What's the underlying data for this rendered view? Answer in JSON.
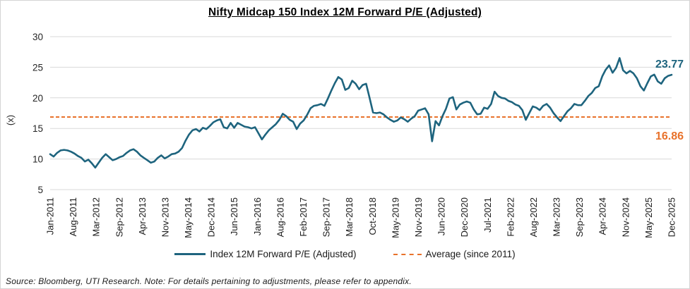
{
  "title": "Nifty Midcap 150 Index 12M Forward P/E (Adjusted)",
  "y_axis_title": "(x)",
  "legend": {
    "series_label": "Index 12M Forward P/E (Adjusted)",
    "average_label": "Average (since 2011)"
  },
  "source_note": "Source: Bloomberg, UTI Research. Note: For details pertaining to adjustments, please refer to appendix.",
  "colors": {
    "series": "#1E647E",
    "average": "#E8722B",
    "grid": "#D9D9D9",
    "text": "#262626"
  },
  "chart_data": {
    "type": "line",
    "title": "Nifty Midcap 150 Index 12M Forward P/E (Adjusted)",
    "xlabel": "",
    "ylabel": "(x)",
    "ylim": [
      5,
      30
    ],
    "yticks": [
      5,
      10,
      15,
      20,
      25,
      30
    ],
    "grid": "horizontal",
    "legend_position": "bottom",
    "x_start": "Jan-2011",
    "x_end": "Dec-2025",
    "frequency": "monthly",
    "x_tick_labels": [
      "Jan-2011",
      "Aug-2011",
      "Mar-2012",
      "Sep-2012",
      "Apr-2013",
      "Nov-2013",
      "May-2014",
      "Dec-2014",
      "Jun-2015",
      "Jan-2016",
      "Aug-2016",
      "Feb-2017",
      "Sep-2017",
      "Mar-2018",
      "Oct-2018",
      "May-2019",
      "Nov-2019",
      "Jun-2020",
      "Dec-2020",
      "Jul-2021",
      "Feb-2022",
      "Aug-2022",
      "Mar-2023",
      "Sep-2023",
      "Apr-2024",
      "Nov-2024",
      "May-2025",
      "Dec-2025"
    ],
    "series": [
      {
        "name": "Index 12M Forward P/E (Adjusted)",
        "values": [
          10.8,
          10.4,
          11.0,
          11.4,
          11.5,
          11.4,
          11.2,
          10.9,
          10.5,
          10.2,
          9.6,
          9.9,
          9.3,
          8.6,
          9.4,
          10.2,
          10.8,
          10.3,
          9.8,
          10.0,
          10.3,
          10.5,
          11.0,
          11.4,
          11.6,
          11.2,
          10.6,
          10.2,
          9.8,
          9.4,
          9.6,
          10.2,
          10.6,
          10.1,
          10.4,
          10.8,
          10.9,
          11.2,
          11.8,
          13.0,
          14.0,
          14.7,
          14.9,
          14.5,
          15.1,
          14.9,
          15.4,
          16.0,
          16.3,
          16.5,
          15.2,
          15.0,
          15.9,
          15.1,
          15.9,
          15.6,
          15.3,
          15.2,
          15.0,
          15.2,
          14.2,
          13.2,
          14.0,
          14.7,
          15.2,
          15.7,
          16.4,
          17.4,
          17.0,
          16.4,
          16.1,
          14.9,
          15.8,
          16.3,
          17.2,
          18.3,
          18.7,
          18.8,
          19.0,
          18.7,
          19.9,
          21.2,
          22.4,
          23.4,
          23.0,
          21.3,
          21.6,
          22.8,
          22.3,
          21.4,
          22.1,
          22.3,
          20.0,
          17.6,
          17.5,
          17.6,
          17.3,
          16.8,
          16.4,
          16.1,
          16.3,
          16.8,
          16.5,
          16.1,
          16.6,
          17.0,
          17.9,
          18.1,
          18.3,
          17.3,
          12.9,
          16.2,
          15.5,
          17.0,
          18.2,
          19.9,
          20.1,
          18.1,
          18.9,
          19.2,
          19.4,
          19.2,
          18.1,
          17.3,
          17.4,
          18.4,
          18.2,
          19.0,
          21.0,
          20.3,
          20.0,
          19.9,
          19.5,
          19.3,
          18.9,
          18.7,
          18.0,
          16.4,
          17.5,
          18.6,
          18.4,
          18.0,
          18.7,
          19.0,
          18.4,
          17.5,
          16.8,
          16.2,
          17.0,
          17.8,
          18.3,
          19.0,
          18.8,
          18.8,
          19.5,
          20.3,
          20.8,
          21.6,
          21.9,
          23.5,
          24.6,
          25.3,
          24.1,
          24.9,
          26.5,
          24.5,
          24.0,
          24.4,
          24.0,
          23.2,
          21.9,
          21.2,
          22.4,
          23.5,
          23.8,
          22.7,
          22.3,
          23.2,
          23.6,
          23.77
        ]
      },
      {
        "name": "Average (since 2011)",
        "constant_value": 16.86
      }
    ],
    "annotations": {
      "last_value_label": "23.77",
      "average_value_label": "16.86"
    }
  }
}
